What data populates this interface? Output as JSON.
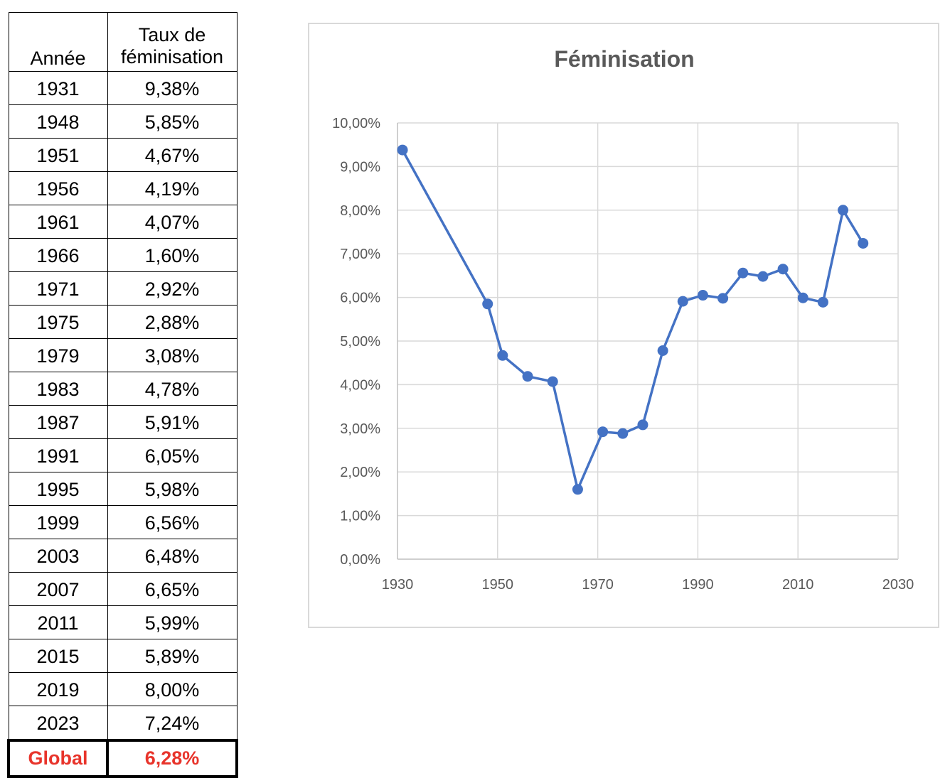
{
  "table": {
    "header": {
      "year": "Année",
      "rate_line1": "Taux de",
      "rate_line2": "féminisation"
    },
    "rows": [
      {
        "year": "1931",
        "rate": "9,38%"
      },
      {
        "year": "1948",
        "rate": "5,85%"
      },
      {
        "year": "1951",
        "rate": "4,67%"
      },
      {
        "year": "1956",
        "rate": "4,19%"
      },
      {
        "year": "1961",
        "rate": "4,07%"
      },
      {
        "year": "1966",
        "rate": "1,60%"
      },
      {
        "year": "1971",
        "rate": "2,92%"
      },
      {
        "year": "1975",
        "rate": "2,88%"
      },
      {
        "year": "1979",
        "rate": "3,08%"
      },
      {
        "year": "1983",
        "rate": "4,78%"
      },
      {
        "year": "1987",
        "rate": "5,91%"
      },
      {
        "year": "1991",
        "rate": "6,05%"
      },
      {
        "year": "1995",
        "rate": "5,98%"
      },
      {
        "year": "1999",
        "rate": "6,56%"
      },
      {
        "year": "2003",
        "rate": "6,48%"
      },
      {
        "year": "2007",
        "rate": "6,65%"
      },
      {
        "year": "2011",
        "rate": "5,99%"
      },
      {
        "year": "2015",
        "rate": "5,89%"
      },
      {
        "year": "2019",
        "rate": "8,00%"
      },
      {
        "year": "2023",
        "rate": "7,24%"
      }
    ],
    "global": {
      "label": "Global",
      "rate": "6,28%",
      "color": "#e8342b"
    }
  },
  "chart_data": {
    "type": "scatter",
    "title": "Féminisation",
    "x": [
      1931,
      1948,
      1951,
      1956,
      1961,
      1966,
      1971,
      1975,
      1979,
      1983,
      1987,
      1991,
      1995,
      1999,
      2003,
      2007,
      2011,
      2015,
      2019,
      2023
    ],
    "y": [
      9.38,
      5.85,
      4.67,
      4.19,
      4.07,
      1.6,
      2.92,
      2.88,
      3.08,
      4.78,
      5.91,
      6.05,
      5.98,
      6.56,
      6.48,
      6.65,
      5.99,
      5.89,
      8.0,
      7.24
    ],
    "connected": true,
    "xlim": [
      1930,
      2030
    ],
    "ylim": [
      0,
      10
    ],
    "x_ticks": [
      "1930",
      "1950",
      "1970",
      "1990",
      "2010",
      "2030"
    ],
    "y_ticks": [
      "0,00%",
      "1,00%",
      "2,00%",
      "3,00%",
      "4,00%",
      "5,00%",
      "6,00%",
      "7,00%",
      "8,00%",
      "9,00%",
      "10,00%"
    ],
    "grid": true,
    "legend": "none",
    "series_color": "#4472c4"
  }
}
